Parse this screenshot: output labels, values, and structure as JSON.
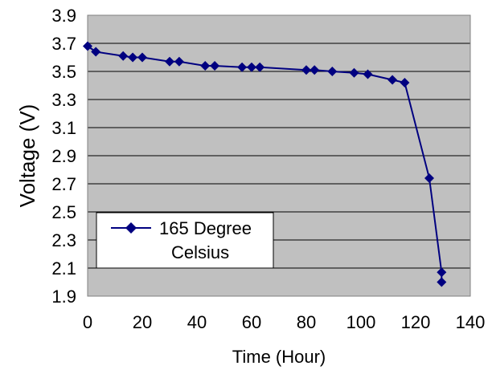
{
  "chart_data": {
    "type": "line",
    "title": "",
    "xlabel": "Time (Hour)",
    "ylabel": "Voltage (V)",
    "xlim": [
      0,
      140
    ],
    "ylim": [
      1.9,
      3.9
    ],
    "xticks": [
      "0",
      "20",
      "40",
      "60",
      "80",
      "100",
      "120",
      "140"
    ],
    "yticks": [
      "3.9",
      "3.7",
      "3.5",
      "3.3",
      "3.1",
      "2.9",
      "2.7",
      "2.5",
      "2.3",
      "2.1",
      "1.9"
    ],
    "grid": true,
    "plot_background": "#C0C0C0",
    "series_color": "#000080",
    "marker": "diamond",
    "legend": {
      "position": "bottom-left",
      "lines": [
        "165 Degree",
        "Celsius"
      ]
    },
    "series": [
      {
        "name": "165 Degree Celsius",
        "x": [
          0,
          3,
          13,
          16.5,
          20,
          30,
          33.5,
          43,
          46.5,
          56.5,
          60,
          63,
          80,
          83,
          89.5,
          97.5,
          102.5,
          111.5,
          116,
          125,
          129.5,
          129.5
        ],
        "y": [
          3.68,
          3.64,
          3.61,
          3.6,
          3.6,
          3.57,
          3.57,
          3.54,
          3.54,
          3.53,
          3.53,
          3.53,
          3.51,
          3.51,
          3.5,
          3.49,
          3.48,
          3.44,
          3.42,
          2.74,
          2.07,
          2.0
        ]
      }
    ]
  }
}
